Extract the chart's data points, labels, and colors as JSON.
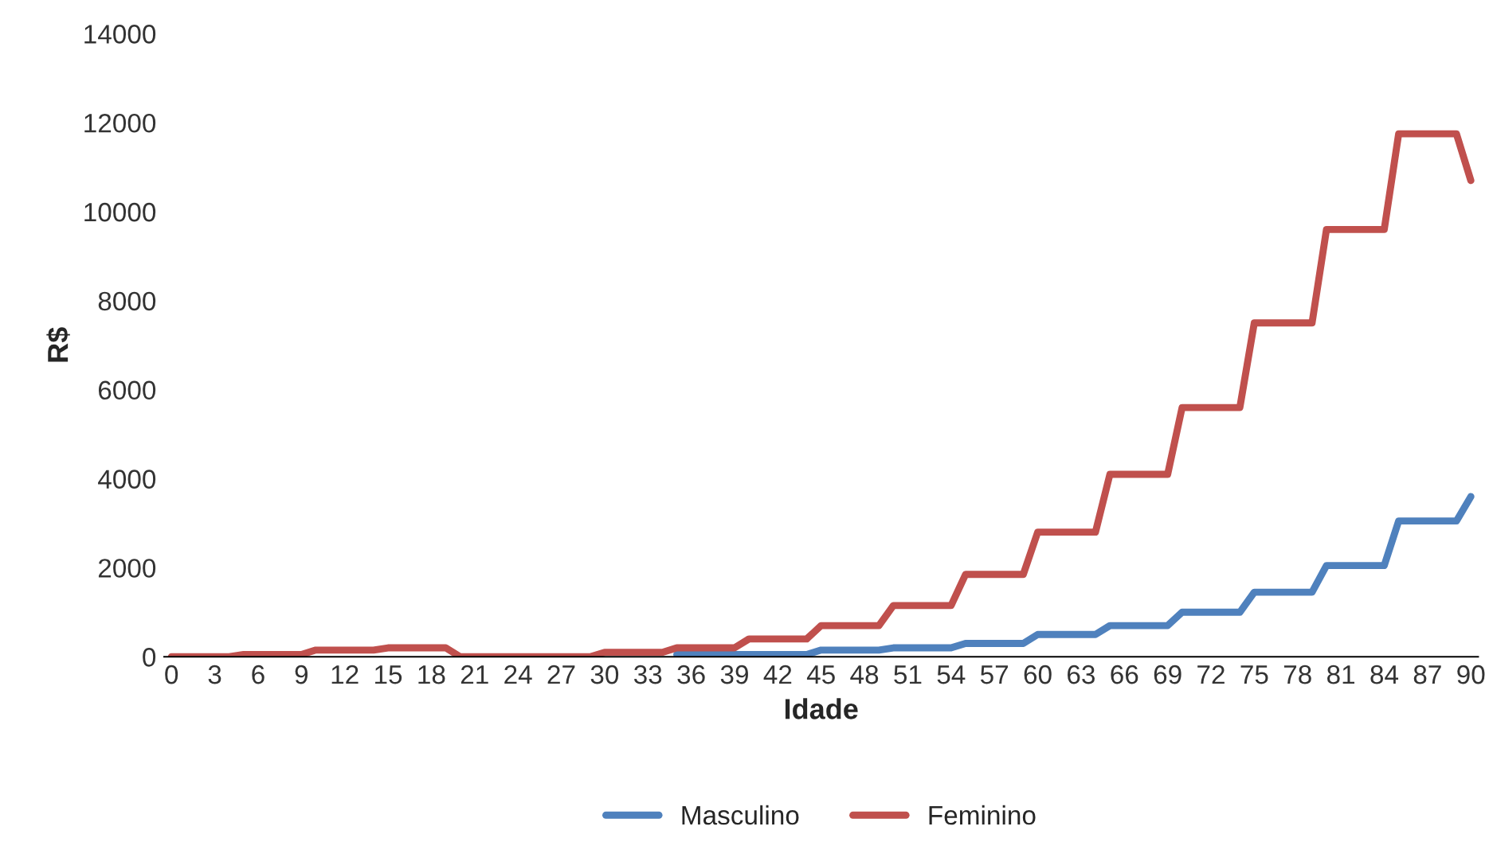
{
  "chart_data": {
    "type": "line",
    "xlabel": "Idade",
    "ylabel": "R$",
    "categories": [
      "0",
      null,
      null,
      "3",
      null,
      null,
      "6",
      null,
      null,
      "9",
      null,
      null,
      "12",
      null,
      null,
      "15",
      null,
      null,
      "18",
      null,
      null,
      "21",
      null,
      null,
      "24",
      null,
      null,
      "27",
      null,
      null,
      "30",
      null,
      null,
      "33",
      null,
      null,
      "36",
      null,
      null,
      "39",
      null,
      null,
      "42",
      null,
      null,
      "45",
      null,
      null,
      "48",
      null,
      null,
      "51",
      null,
      null,
      "54",
      null,
      null,
      "57",
      null,
      null,
      "60",
      null,
      null,
      "63",
      null,
      null,
      "66",
      null,
      null,
      "69",
      null,
      null,
      "72",
      null,
      null,
      "75",
      null,
      null,
      "78",
      null,
      null,
      "81",
      null,
      null,
      "84",
      null,
      null,
      "87",
      null,
      null,
      "90"
    ],
    "series": [
      {
        "name": "Masculino",
        "color": "#4f81bd",
        "values": [
          null,
          null,
          null,
          null,
          null,
          null,
          null,
          null,
          null,
          null,
          null,
          null,
          null,
          null,
          null,
          null,
          null,
          null,
          null,
          null,
          null,
          null,
          null,
          null,
          null,
          null,
          null,
          null,
          null,
          null,
          null,
          null,
          null,
          null,
          null,
          50,
          50,
          50,
          50,
          50,
          50,
          50,
          50,
          50,
          50,
          150,
          150,
          150,
          150,
          150,
          200,
          200,
          200,
          200,
          200,
          300,
          300,
          300,
          300,
          300,
          500,
          500,
          500,
          500,
          500,
          700,
          700,
          700,
          700,
          700,
          1000,
          1000,
          1000,
          1000,
          1000,
          1450,
          1450,
          1450,
          1450,
          1450,
          2050,
          2050,
          2050,
          2050,
          2050,
          3050,
          3050,
          3050,
          3050,
          3050,
          3600
        ]
      },
      {
        "name": "Feminino",
        "color": "#c0504d",
        "values": [
          0,
          0,
          0,
          0,
          0,
          50,
          50,
          50,
          50,
          50,
          150,
          150,
          150,
          150,
          150,
          200,
          200,
          200,
          200,
          200,
          0,
          0,
          0,
          0,
          0,
          0,
          0,
          0,
          0,
          0,
          100,
          100,
          100,
          100,
          100,
          200,
          200,
          200,
          200,
          200,
          400,
          400,
          400,
          400,
          400,
          700,
          700,
          700,
          700,
          700,
          1150,
          1150,
          1150,
          1150,
          1150,
          1850,
          1850,
          1850,
          1850,
          1850,
          2800,
          2800,
          2800,
          2800,
          2800,
          4100,
          4100,
          4100,
          4100,
          4100,
          5600,
          5600,
          5600,
          5600,
          5600,
          7500,
          7500,
          7500,
          7500,
          7500,
          9600,
          9600,
          9600,
          9600,
          9600,
          11750,
          11750,
          11750,
          11750,
          11750,
          10700
        ]
      }
    ],
    "ylim": [
      0,
      14000
    ],
    "yticks": [
      0,
      2000,
      4000,
      6000,
      8000,
      10000,
      12000,
      14000
    ],
    "grid": false,
    "legend": "bottom",
    "marker": "none",
    "line_style": "solid"
  }
}
